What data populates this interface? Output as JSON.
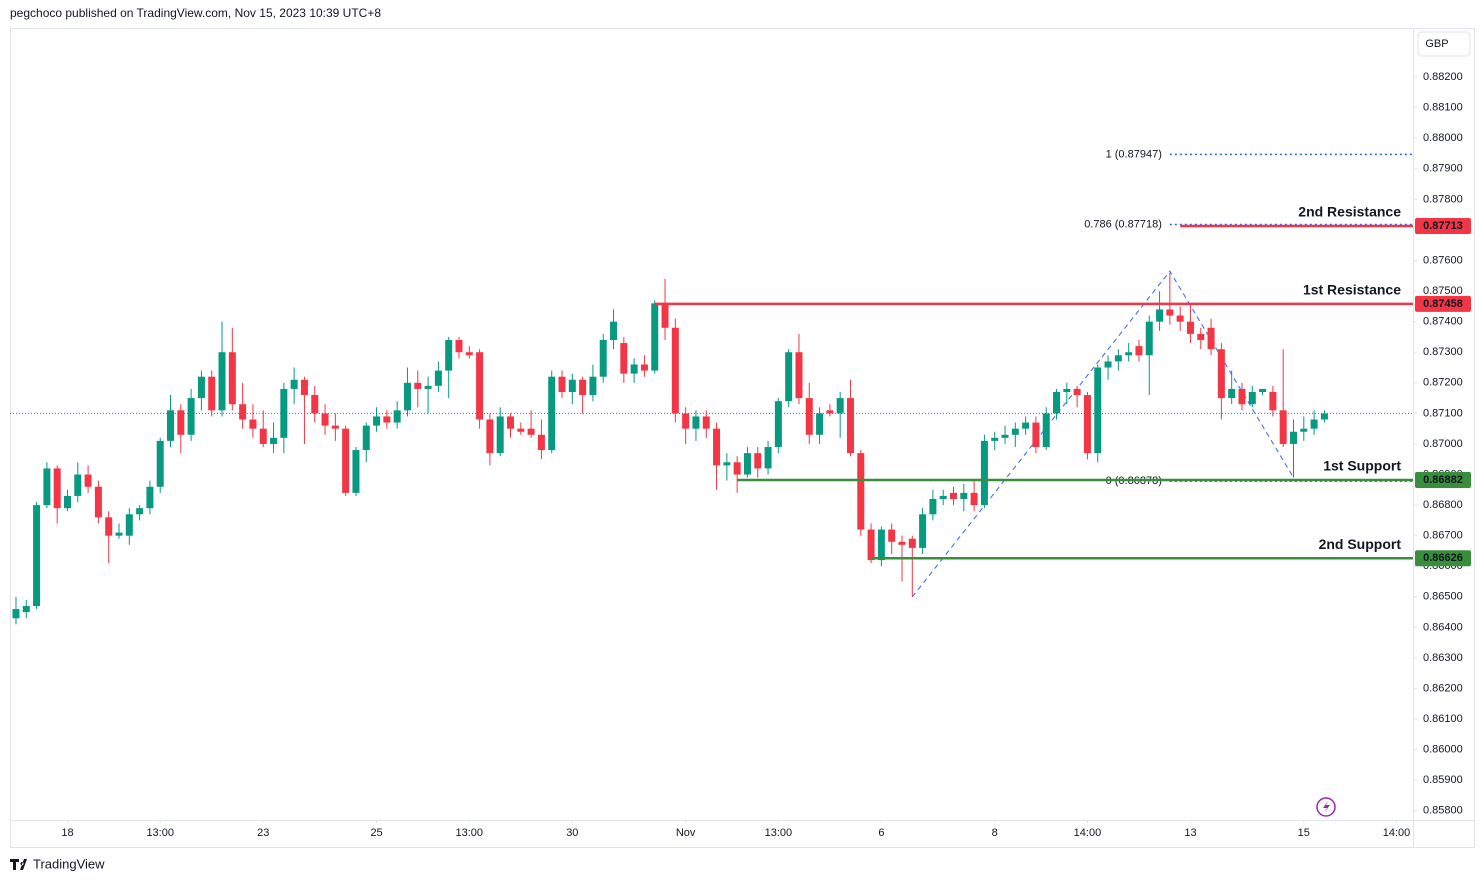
{
  "header": "pegchoco published on TradingView.com, Nov 15, 2023 10:39 UTC+8",
  "footer": "TradingView",
  "chart_data": {
    "type": "candlestick",
    "currency": "GBP",
    "up_color": "#089981",
    "down_color": "#f23645",
    "xlim": [
      -0.58,
      135.6
    ],
    "ylim": [
      0.8577,
      0.88354
    ],
    "xticks": [
      {
        "value": 5,
        "label": "18"
      },
      {
        "value": 14,
        "label": "13:00"
      },
      {
        "value": 24,
        "label": "23"
      },
      {
        "value": 35,
        "label": "25"
      },
      {
        "value": 44,
        "label": "13:00"
      },
      {
        "value": 54,
        "label": "30"
      },
      {
        "value": 65,
        "label": "Nov"
      },
      {
        "value": 74,
        "label": "13:00"
      },
      {
        "value": 84,
        "label": "6"
      },
      {
        "value": 95,
        "label": "8"
      },
      {
        "value": 104,
        "label": "14:00"
      },
      {
        "value": 114,
        "label": "13"
      },
      {
        "value": 125,
        "label": "15"
      },
      {
        "value": 134,
        "label": "14:00"
      }
    ],
    "yticks": [
      {
        "value": 0.882,
        "label": "0.88200"
      },
      {
        "value": 0.881,
        "label": "0.88100"
      },
      {
        "value": 0.88,
        "label": "0.88000"
      },
      {
        "value": 0.879,
        "label": "0.87900"
      },
      {
        "value": 0.878,
        "label": "0.87800"
      },
      {
        "value": 0.877,
        "label": "0.87700"
      },
      {
        "value": 0.876,
        "label": "0.87600"
      },
      {
        "value": 0.875,
        "label": "0.87500"
      },
      {
        "value": 0.874,
        "label": "0.87400"
      },
      {
        "value": 0.873,
        "label": "0.87300"
      },
      {
        "value": 0.872,
        "label": "0.87200"
      },
      {
        "value": 0.871,
        "label": "0.87100"
      },
      {
        "value": 0.87,
        "label": "0.87000"
      },
      {
        "value": 0.869,
        "label": "0.86900"
      },
      {
        "value": 0.868,
        "label": "0.86800"
      },
      {
        "value": 0.867,
        "label": "0.86700"
      },
      {
        "value": 0.866,
        "label": "0.86600"
      },
      {
        "value": 0.865,
        "label": "0.86500"
      },
      {
        "value": 0.864,
        "label": "0.86400"
      },
      {
        "value": 0.863,
        "label": "0.86300"
      },
      {
        "value": 0.862,
        "label": "0.86200"
      },
      {
        "value": 0.861,
        "label": "0.86100"
      },
      {
        "value": 0.86,
        "label": "0.86000"
      },
      {
        "value": 0.859,
        "label": "0.85900"
      },
      {
        "value": 0.858,
        "label": "0.85800"
      }
    ],
    "last_price": 0.871,
    "levels": [
      {
        "label": "2nd Resistance",
        "value": 0.87713,
        "color": "#f23645",
        "start": 113
      },
      {
        "label": "1st Resistance",
        "value": 0.87458,
        "color": "#f23645",
        "start": 62
      },
      {
        "label": "1st Support",
        "value": 0.86882,
        "color": "#388e3c",
        "start": 70
      },
      {
        "label": "2nd Support",
        "value": 0.86626,
        "color": "#388e3c",
        "start": 83
      }
    ],
    "fib_levels": [
      {
        "label": "1 (0.87947)",
        "value": 0.87947,
        "start": 112
      },
      {
        "label": "0.786 (0.87718)",
        "value": 0.87718,
        "start": 112
      },
      {
        "label": "0 (0.86878)",
        "value": 0.86878,
        "start": 112
      }
    ],
    "fib_color": "#2962ff",
    "pattern": {
      "x": [
        87,
        112,
        124
      ],
      "y": [
        0.865,
        0.87565,
        0.8689
      ]
    },
    "candles": [
      {
        "o": 0.8643,
        "h": 0.865,
        "l": 0.8641,
        "c": 0.8646
      },
      {
        "o": 0.8645,
        "h": 0.8649,
        "l": 0.8643,
        "c": 0.8647
      },
      {
        "o": 0.8647,
        "h": 0.8681,
        "l": 0.8646,
        "c": 0.868
      },
      {
        "o": 0.868,
        "h": 0.8694,
        "l": 0.8679,
        "c": 0.8692
      },
      {
        "o": 0.8692,
        "h": 0.8693,
        "l": 0.8674,
        "c": 0.8679
      },
      {
        "o": 0.8679,
        "h": 0.8685,
        "l": 0.8678,
        "c": 0.8683
      },
      {
        "o": 0.8683,
        "h": 0.8694,
        "l": 0.8681,
        "c": 0.869
      },
      {
        "o": 0.869,
        "h": 0.8693,
        "l": 0.8684,
        "c": 0.8686
      },
      {
        "o": 0.8686,
        "h": 0.8688,
        "l": 0.8674,
        "c": 0.8676
      },
      {
        "o": 0.8676,
        "h": 0.8678,
        "l": 0.8661,
        "c": 0.867
      },
      {
        "o": 0.867,
        "h": 0.8674,
        "l": 0.8669,
        "c": 0.8671
      },
      {
        "o": 0.867,
        "h": 0.8679,
        "l": 0.8667,
        "c": 0.8677
      },
      {
        "o": 0.8677,
        "h": 0.868,
        "l": 0.8675,
        "c": 0.8679
      },
      {
        "o": 0.8679,
        "h": 0.8688,
        "l": 0.8677,
        "c": 0.8686
      },
      {
        "o": 0.8686,
        "h": 0.8702,
        "l": 0.8684,
        "c": 0.8701
      },
      {
        "o": 0.8701,
        "h": 0.8716,
        "l": 0.8699,
        "c": 0.8711
      },
      {
        "o": 0.8711,
        "h": 0.8713,
        "l": 0.8697,
        "c": 0.8703
      },
      {
        "o": 0.8703,
        "h": 0.8718,
        "l": 0.8701,
        "c": 0.8715
      },
      {
        "o": 0.8715,
        "h": 0.8724,
        "l": 0.8711,
        "c": 0.8722
      },
      {
        "o": 0.8722,
        "h": 0.8724,
        "l": 0.8709,
        "c": 0.8711
      },
      {
        "o": 0.8711,
        "h": 0.874,
        "l": 0.8709,
        "c": 0.873
      },
      {
        "o": 0.873,
        "h": 0.8738,
        "l": 0.8711,
        "c": 0.8713
      },
      {
        "o": 0.8713,
        "h": 0.872,
        "l": 0.8705,
        "c": 0.8708
      },
      {
        "o": 0.8708,
        "h": 0.8713,
        "l": 0.8702,
        "c": 0.8705
      },
      {
        "o": 0.8705,
        "h": 0.8711,
        "l": 0.8699,
        "c": 0.87
      },
      {
        "o": 0.87,
        "h": 0.8707,
        "l": 0.8697,
        "c": 0.8702
      },
      {
        "o": 0.8702,
        "h": 0.872,
        "l": 0.8697,
        "c": 0.8718
      },
      {
        "o": 0.8718,
        "h": 0.8725,
        "l": 0.8713,
        "c": 0.8721
      },
      {
        "o": 0.8721,
        "h": 0.8722,
        "l": 0.87,
        "c": 0.8716
      },
      {
        "o": 0.8716,
        "h": 0.8719,
        "l": 0.8707,
        "c": 0.871
      },
      {
        "o": 0.871,
        "h": 0.8713,
        "l": 0.8703,
        "c": 0.8706
      },
      {
        "o": 0.8706,
        "h": 0.871,
        "l": 0.8701,
        "c": 0.8705
      },
      {
        "o": 0.8705,
        "h": 0.8706,
        "l": 0.8683,
        "c": 0.8684
      },
      {
        "o": 0.8684,
        "h": 0.8699,
        "l": 0.8683,
        "c": 0.8698
      },
      {
        "o": 0.8698,
        "h": 0.8707,
        "l": 0.8694,
        "c": 0.8706
      },
      {
        "o": 0.8706,
        "h": 0.8712,
        "l": 0.8704,
        "c": 0.8709
      },
      {
        "o": 0.8709,
        "h": 0.8711,
        "l": 0.8705,
        "c": 0.8707
      },
      {
        "o": 0.8707,
        "h": 0.8714,
        "l": 0.8705,
        "c": 0.8711
      },
      {
        "o": 0.8711,
        "h": 0.8725,
        "l": 0.8709,
        "c": 0.872
      },
      {
        "o": 0.872,
        "h": 0.8724,
        "l": 0.8712,
        "c": 0.8718
      },
      {
        "o": 0.8718,
        "h": 0.8722,
        "l": 0.871,
        "c": 0.8719
      },
      {
        "o": 0.8719,
        "h": 0.8727,
        "l": 0.8717,
        "c": 0.8724
      },
      {
        "o": 0.8724,
        "h": 0.8735,
        "l": 0.8715,
        "c": 0.8734
      },
      {
        "o": 0.8734,
        "h": 0.8735,
        "l": 0.8728,
        "c": 0.873
      },
      {
        "o": 0.873,
        "h": 0.8732,
        "l": 0.8728,
        "c": 0.8729
      },
      {
        "o": 0.873,
        "h": 0.8731,
        "l": 0.8705,
        "c": 0.8708
      },
      {
        "o": 0.8708,
        "h": 0.871,
        "l": 0.8693,
        "c": 0.8697
      },
      {
        "o": 0.8697,
        "h": 0.8712,
        "l": 0.8696,
        "c": 0.8709
      },
      {
        "o": 0.8709,
        "h": 0.871,
        "l": 0.8702,
        "c": 0.8705
      },
      {
        "o": 0.8705,
        "h": 0.8707,
        "l": 0.8703,
        "c": 0.8704
      },
      {
        "o": 0.8705,
        "h": 0.8711,
        "l": 0.8702,
        "c": 0.8703
      },
      {
        "o": 0.8703,
        "h": 0.8708,
        "l": 0.8695,
        "c": 0.8698
      },
      {
        "o": 0.8698,
        "h": 0.8724,
        "l": 0.8697,
        "c": 0.8722
      },
      {
        "o": 0.8722,
        "h": 0.8724,
        "l": 0.8715,
        "c": 0.8717
      },
      {
        "o": 0.8717,
        "h": 0.8723,
        "l": 0.8713,
        "c": 0.8721
      },
      {
        "o": 0.8721,
        "h": 0.8722,
        "l": 0.871,
        "c": 0.8716
      },
      {
        "o": 0.8716,
        "h": 0.8726,
        "l": 0.8714,
        "c": 0.8722
      },
      {
        "o": 0.8722,
        "h": 0.8736,
        "l": 0.872,
        "c": 0.8734
      },
      {
        "o": 0.8734,
        "h": 0.8744,
        "l": 0.8731,
        "c": 0.874
      },
      {
        "o": 0.8733,
        "h": 0.8735,
        "l": 0.872,
        "c": 0.8723
      },
      {
        "o": 0.8723,
        "h": 0.8728,
        "l": 0.872,
        "c": 0.8726
      },
      {
        "o": 0.8726,
        "h": 0.8729,
        "l": 0.8722,
        "c": 0.8724
      },
      {
        "o": 0.8724,
        "h": 0.8747,
        "l": 0.8723,
        "c": 0.8746
      },
      {
        "o": 0.8746,
        "h": 0.8754,
        "l": 0.8734,
        "c": 0.8738
      },
      {
        "o": 0.8738,
        "h": 0.8741,
        "l": 0.8707,
        "c": 0.871
      },
      {
        "o": 0.871,
        "h": 0.8712,
        "l": 0.87,
        "c": 0.8705
      },
      {
        "o": 0.8705,
        "h": 0.8711,
        "l": 0.8701,
        "c": 0.8709
      },
      {
        "o": 0.8709,
        "h": 0.8711,
        "l": 0.8702,
        "c": 0.8705
      },
      {
        "o": 0.8705,
        "h": 0.8707,
        "l": 0.8685,
        "c": 0.8693
      },
      {
        "o": 0.8693,
        "h": 0.8697,
        "l": 0.8688,
        "c": 0.8694
      },
      {
        "o": 0.8694,
        "h": 0.8696,
        "l": 0.8684,
        "c": 0.869
      },
      {
        "o": 0.869,
        "h": 0.8699,
        "l": 0.8689,
        "c": 0.8697
      },
      {
        "o": 0.8697,
        "h": 0.8699,
        "l": 0.8689,
        "c": 0.8692
      },
      {
        "o": 0.8692,
        "h": 0.8701,
        "l": 0.869,
        "c": 0.8699
      },
      {
        "o": 0.8699,
        "h": 0.8715,
        "l": 0.8697,
        "c": 0.8714
      },
      {
        "o": 0.8714,
        "h": 0.8731,
        "l": 0.8712,
        "c": 0.873
      },
      {
        "o": 0.873,
        "h": 0.8736,
        "l": 0.8713,
        "c": 0.8715
      },
      {
        "o": 0.8715,
        "h": 0.872,
        "l": 0.87,
        "c": 0.8703
      },
      {
        "o": 0.8703,
        "h": 0.8712,
        "l": 0.87,
        "c": 0.871
      },
      {
        "o": 0.8711,
        "h": 0.8713,
        "l": 0.8709,
        "c": 0.871
      },
      {
        "o": 0.871,
        "h": 0.8717,
        "l": 0.8702,
        "c": 0.8715
      },
      {
        "o": 0.8715,
        "h": 0.8721,
        "l": 0.8696,
        "c": 0.8697
      },
      {
        "o": 0.8697,
        "h": 0.8698,
        "l": 0.867,
        "c": 0.8672
      },
      {
        "o": 0.8672,
        "h": 0.8674,
        "l": 0.8661,
        "c": 0.8662
      },
      {
        "o": 0.8662,
        "h": 0.8673,
        "l": 0.866,
        "c": 0.8672
      },
      {
        "o": 0.8672,
        "h": 0.8674,
        "l": 0.8664,
        "c": 0.8668
      },
      {
        "o": 0.8668,
        "h": 0.867,
        "l": 0.8655,
        "c": 0.8667
      },
      {
        "o": 0.8669,
        "h": 0.867,
        "l": 0.865,
        "c": 0.8666
      },
      {
        "o": 0.8666,
        "h": 0.8679,
        "l": 0.8664,
        "c": 0.8677
      },
      {
        "o": 0.8677,
        "h": 0.8685,
        "l": 0.8675,
        "c": 0.8682
      },
      {
        "o": 0.8682,
        "h": 0.8685,
        "l": 0.868,
        "c": 0.8683
      },
      {
        "o": 0.8684,
        "h": 0.8686,
        "l": 0.868,
        "c": 0.8682
      },
      {
        "o": 0.8682,
        "h": 0.8687,
        "l": 0.8678,
        "c": 0.8684
      },
      {
        "o": 0.8684,
        "h": 0.8688,
        "l": 0.8678,
        "c": 0.868
      },
      {
        "o": 0.868,
        "h": 0.8703,
        "l": 0.8679,
        "c": 0.8701
      },
      {
        "o": 0.8701,
        "h": 0.8704,
        "l": 0.8698,
        "c": 0.8702
      },
      {
        "o": 0.8702,
        "h": 0.8706,
        "l": 0.87,
        "c": 0.8703
      },
      {
        "o": 0.8703,
        "h": 0.8707,
        "l": 0.8699,
        "c": 0.8705
      },
      {
        "o": 0.8705,
        "h": 0.8709,
        "l": 0.8703,
        "c": 0.8707
      },
      {
        "o": 0.8707,
        "h": 0.8709,
        "l": 0.8697,
        "c": 0.8699
      },
      {
        "o": 0.8699,
        "h": 0.8712,
        "l": 0.8698,
        "c": 0.871
      },
      {
        "o": 0.871,
        "h": 0.8718,
        "l": 0.8708,
        "c": 0.8717
      },
      {
        "o": 0.8717,
        "h": 0.872,
        "l": 0.8713,
        "c": 0.8718
      },
      {
        "o": 0.8718,
        "h": 0.8719,
        "l": 0.8712,
        "c": 0.8716
      },
      {
        "o": 0.8716,
        "h": 0.8717,
        "l": 0.8695,
        "c": 0.8697
      },
      {
        "o": 0.8697,
        "h": 0.8726,
        "l": 0.8694,
        "c": 0.8725
      },
      {
        "o": 0.8725,
        "h": 0.8729,
        "l": 0.8721,
        "c": 0.8727
      },
      {
        "o": 0.8727,
        "h": 0.8731,
        "l": 0.8724,
        "c": 0.8729
      },
      {
        "o": 0.8729,
        "h": 0.8733,
        "l": 0.8727,
        "c": 0.873
      },
      {
        "o": 0.8732,
        "h": 0.8734,
        "l": 0.8727,
        "c": 0.8729
      },
      {
        "o": 0.8729,
        "h": 0.8742,
        "l": 0.8716,
        "c": 0.874
      },
      {
        "o": 0.874,
        "h": 0.875,
        "l": 0.8737,
        "c": 0.8744
      },
      {
        "o": 0.8744,
        "h": 0.8756,
        "l": 0.8739,
        "c": 0.8742
      },
      {
        "o": 0.8742,
        "h": 0.8745,
        "l": 0.8737,
        "c": 0.874
      },
      {
        "o": 0.874,
        "h": 0.8746,
        "l": 0.8733,
        "c": 0.8736
      },
      {
        "o": 0.8736,
        "h": 0.8738,
        "l": 0.8731,
        "c": 0.8734
      },
      {
        "o": 0.8738,
        "h": 0.8741,
        "l": 0.8729,
        "c": 0.8731
      },
      {
        "o": 0.8731,
        "h": 0.8733,
        "l": 0.8708,
        "c": 0.8715
      },
      {
        "o": 0.8715,
        "h": 0.8724,
        "l": 0.8713,
        "c": 0.8718
      },
      {
        "o": 0.8718,
        "h": 0.872,
        "l": 0.8711,
        "c": 0.8713
      },
      {
        "o": 0.8713,
        "h": 0.8719,
        "l": 0.8712,
        "c": 0.8717
      },
      {
        "o": 0.8717,
        "h": 0.8718,
        "l": 0.8716,
        "c": 0.8718
      },
      {
        "o": 0.8717,
        "h": 0.8719,
        "l": 0.8709,
        "c": 0.8711
      },
      {
        "o": 0.8711,
        "h": 0.8731,
        "l": 0.8699,
        "c": 0.87
      },
      {
        "o": 0.87,
        "h": 0.8708,
        "l": 0.8689,
        "c": 0.8704
      },
      {
        "o": 0.8704,
        "h": 0.8709,
        "l": 0.8701,
        "c": 0.8705
      },
      {
        "o": 0.8705,
        "h": 0.8711,
        "l": 0.8703,
        "c": 0.8708
      },
      {
        "o": 0.8708,
        "h": 0.8711,
        "l": 0.8707,
        "c": 0.871
      }
    ]
  }
}
